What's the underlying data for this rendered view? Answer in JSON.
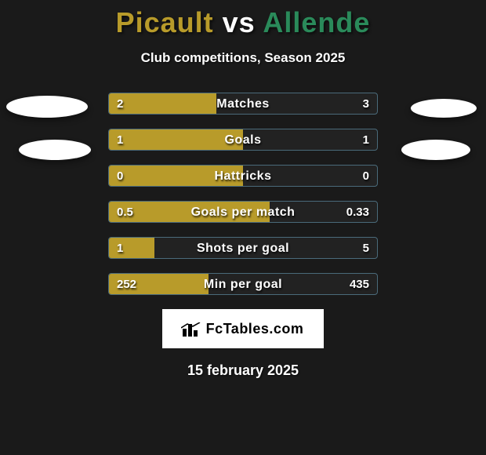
{
  "title": {
    "player1": "Picault",
    "vs": "vs",
    "player2": "Allende"
  },
  "subtitle": "Club competitions, Season 2025",
  "colors": {
    "fill": "#b89b2a",
    "border": "#4a6a7a",
    "bg": "#1a1a1a",
    "p1": "#b89b2a",
    "p2": "#2a8a5a"
  },
  "bars": [
    {
      "label": "Matches",
      "left": "2",
      "right": "3",
      "fill_pct": 40
    },
    {
      "label": "Goals",
      "left": "1",
      "right": "1",
      "fill_pct": 50
    },
    {
      "label": "Hattricks",
      "left": "0",
      "right": "0",
      "fill_pct": 50
    },
    {
      "label": "Goals per match",
      "left": "0.5",
      "right": "0.33",
      "fill_pct": 60
    },
    {
      "label": "Shots per goal",
      "left": "1",
      "right": "5",
      "fill_pct": 17
    },
    {
      "label": "Min per goal",
      "left": "252",
      "right": "435",
      "fill_pct": 37
    }
  ],
  "brand": "FcTables.com",
  "date": "15 february 2025"
}
